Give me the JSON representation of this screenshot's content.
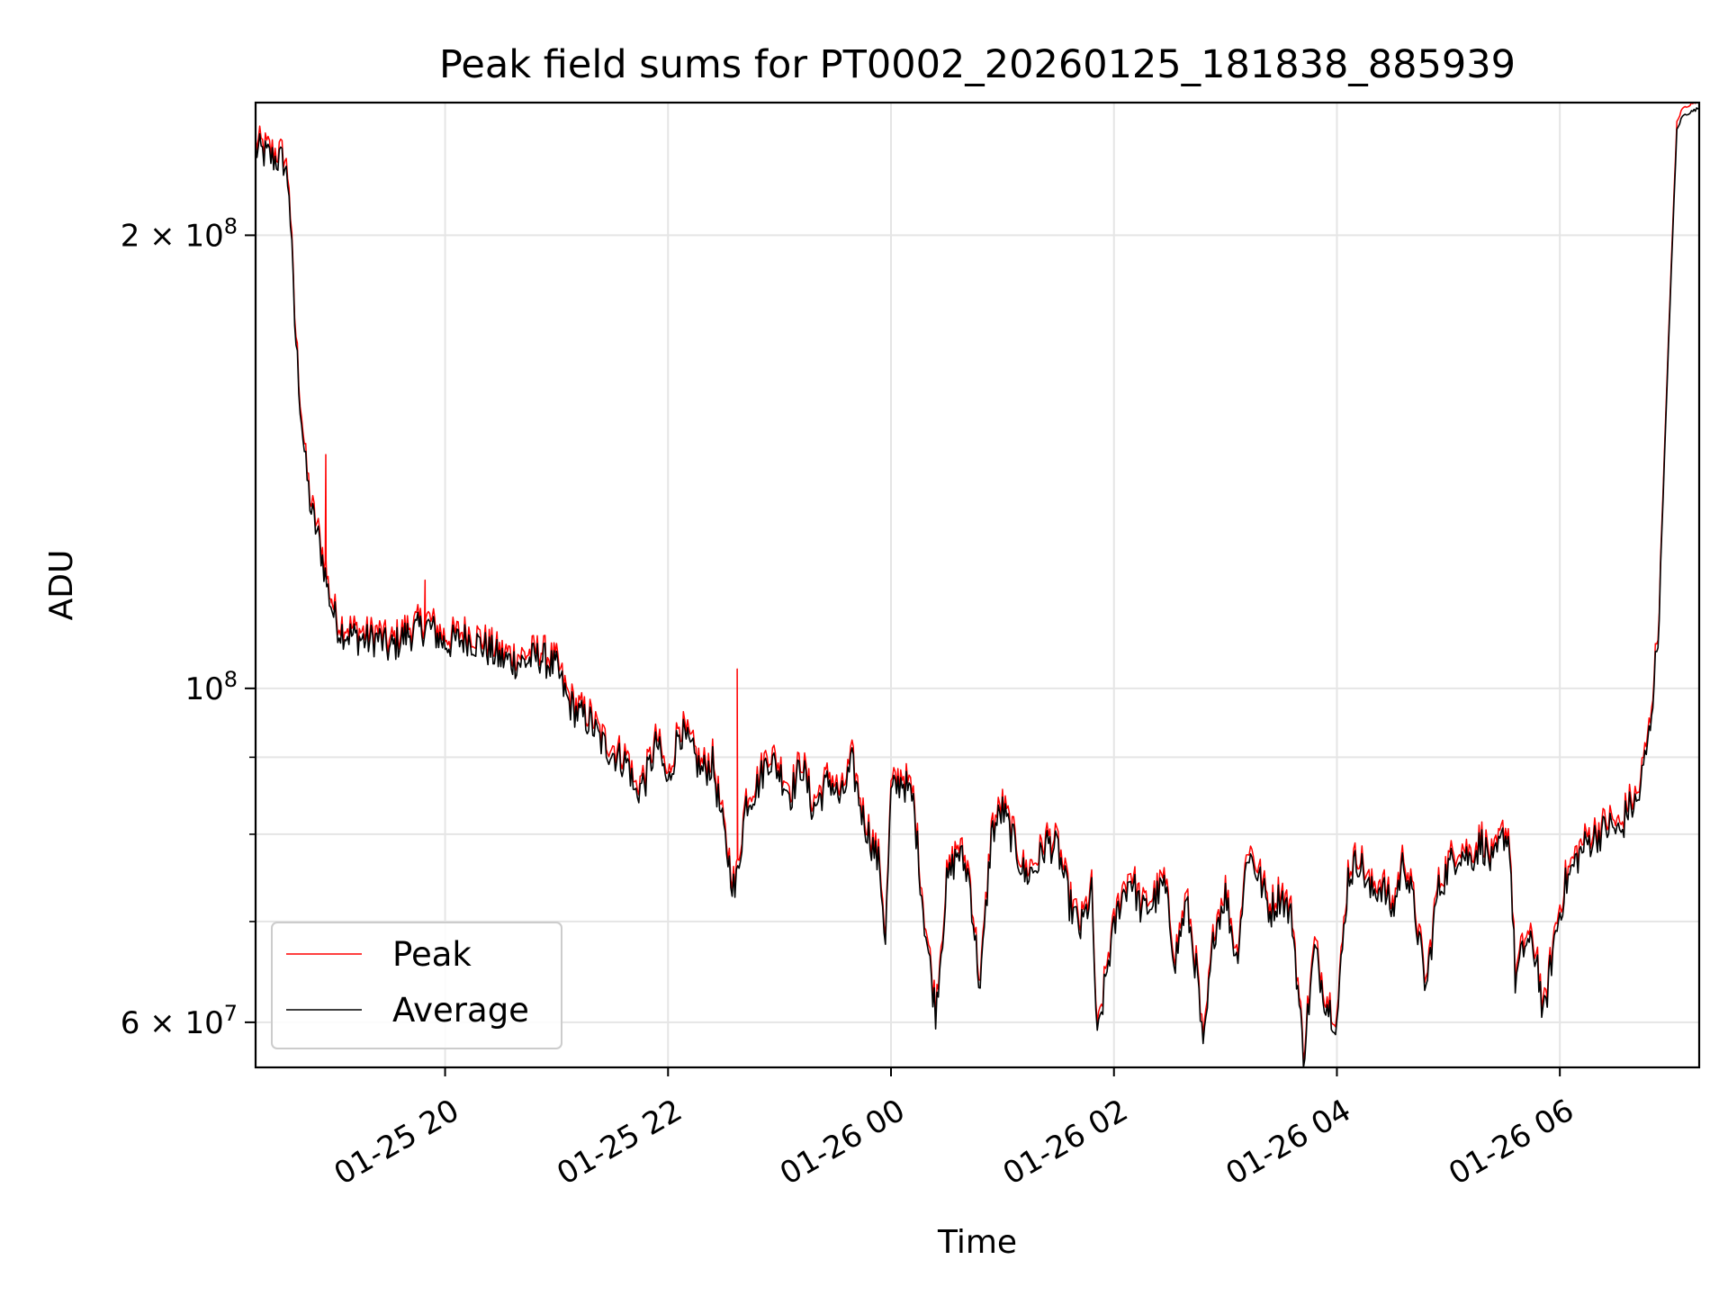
{
  "chart_data": {
    "type": "line",
    "title": "Peak field sums for PT0002_20260125_181838_885939",
    "xlabel": "Time",
    "ylabel": "ADU",
    "yscale": "log",
    "ylim": [
      56000000,
      245000000
    ],
    "xlim_hours": [
      -1.7,
      11.25
    ],
    "x_unit": "hours since 01-25 20:00",
    "grid": true,
    "legend": {
      "position": "lower-left",
      "entries": [
        "Peak",
        "Average"
      ]
    },
    "x_ticks": [
      {
        "label": "01-25 20",
        "value": 0
      },
      {
        "label": "01-25 22",
        "value": 2
      },
      {
        "label": "01-26 00",
        "value": 4
      },
      {
        "label": "01-26 02",
        "value": 6
      },
      {
        "label": "01-26 04",
        "value": 8
      },
      {
        "label": "01-26 06",
        "value": 10
      }
    ],
    "y_major_ticks": [
      {
        "value": 100000000,
        "mant": "",
        "base": "10",
        "exp": "8"
      },
      {
        "value": 200000000,
        "mant": "2 × ",
        "base": "10",
        "exp": "8"
      },
      {
        "value": 60000000,
        "mant": "6 × ",
        "base": "10",
        "exp": "7"
      }
    ],
    "y_minor_ticks": [
      70000000,
      80000000,
      90000000
    ],
    "colors": {
      "peak": "#ff0000",
      "average": "#000000",
      "grid": "#e5e5e5"
    },
    "series": [
      {
        "name": "Average",
        "points": [
          [
            -1.7,
            228000000
          ],
          [
            -1.55,
            225000000
          ],
          [
            -1.45,
            224000000
          ],
          [
            -1.4,
            215000000
          ],
          [
            -1.35,
            175000000
          ],
          [
            -1.3,
            155000000
          ],
          [
            -1.25,
            140000000
          ],
          [
            -1.2,
            131000000
          ],
          [
            -1.15,
            127000000
          ],
          [
            -1.1,
            122000000
          ],
          [
            -1.05,
            116000000
          ],
          [
            -1.0,
            112000000
          ],
          [
            -0.95,
            109500000
          ],
          [
            -0.85,
            108500000
          ],
          [
            -0.7,
            107500000
          ],
          [
            -0.6,
            108000000
          ],
          [
            -0.5,
            106000000
          ],
          [
            -0.35,
            108500000
          ],
          [
            -0.15,
            110000000
          ],
          [
            0.0,
            107000000
          ],
          [
            0.2,
            108000000
          ],
          [
            0.35,
            106500000
          ],
          [
            0.5,
            104500000
          ],
          [
            0.7,
            104000000
          ],
          [
            0.85,
            105000000
          ],
          [
            1.0,
            103000000
          ],
          [
            1.1,
            98000000
          ],
          [
            1.2,
            96000000
          ],
          [
            1.3,
            95000000
          ],
          [
            1.4,
            92000000
          ],
          [
            1.55,
            90000000
          ],
          [
            1.65,
            89000000
          ],
          [
            1.7,
            85000000
          ],
          [
            1.8,
            87000000
          ],
          [
            1.9,
            92000000
          ],
          [
            2.0,
            86000000
          ],
          [
            2.1,
            94000000
          ],
          [
            2.2,
            91000000
          ],
          [
            2.3,
            88000000
          ],
          [
            2.4,
            89000000
          ],
          [
            2.5,
            80000000
          ],
          [
            2.6,
            73000000
          ],
          [
            2.7,
            84000000
          ],
          [
            2.8,
            86000000
          ],
          [
            2.9,
            90000000
          ],
          [
            3.0,
            88000000
          ],
          [
            3.1,
            85000000
          ],
          [
            3.2,
            89000000
          ],
          [
            3.3,
            83000000
          ],
          [
            3.45,
            87000000
          ],
          [
            3.55,
            84000000
          ],
          [
            3.65,
            89000000
          ],
          [
            3.75,
            82000000
          ],
          [
            3.8,
            80000000
          ],
          [
            3.9,
            76000000
          ],
          [
            3.95,
            68000000
          ],
          [
            4.0,
            85000000
          ],
          [
            4.1,
            87000000
          ],
          [
            4.2,
            84000000
          ],
          [
            4.3,
            70000000
          ],
          [
            4.4,
            61000000
          ],
          [
            4.5,
            74000000
          ],
          [
            4.6,
            78000000
          ],
          [
            4.7,
            75000000
          ],
          [
            4.8,
            63000000
          ],
          [
            4.9,
            80000000
          ],
          [
            5.0,
            83000000
          ],
          [
            5.1,
            79000000
          ],
          [
            5.2,
            75000000
          ],
          [
            5.3,
            76000000
          ],
          [
            5.4,
            79000000
          ],
          [
            5.5,
            78000000
          ],
          [
            5.6,
            72000000
          ],
          [
            5.7,
            69000000
          ],
          [
            5.8,
            73000000
          ],
          [
            5.85,
            58000000
          ],
          [
            5.95,
            66000000
          ],
          [
            6.05,
            72000000
          ],
          [
            6.15,
            75000000
          ],
          [
            6.25,
            71000000
          ],
          [
            6.35,
            72000000
          ],
          [
            6.45,
            74000000
          ],
          [
            6.55,
            66000000
          ],
          [
            6.65,
            72000000
          ],
          [
            6.75,
            64000000
          ],
          [
            6.8,
            57000000
          ],
          [
            6.9,
            69000000
          ],
          [
            7.0,
            73000000
          ],
          [
            7.1,
            66000000
          ],
          [
            7.2,
            78000000
          ],
          [
            7.3,
            75000000
          ],
          [
            7.4,
            71000000
          ],
          [
            7.5,
            73000000
          ],
          [
            7.6,
            70000000
          ],
          [
            7.7,
            57000000
          ],
          [
            7.8,
            67000000
          ],
          [
            7.9,
            62000000
          ],
          [
            8.0,
            60000000
          ],
          [
            8.1,
            75000000
          ],
          [
            8.2,
            77000000
          ],
          [
            8.3,
            73000000
          ],
          [
            8.4,
            74000000
          ],
          [
            8.5,
            71000000
          ],
          [
            8.6,
            77000000
          ],
          [
            8.7,
            71000000
          ],
          [
            8.8,
            63000000
          ],
          [
            8.9,
            73000000
          ],
          [
            9.0,
            76000000
          ],
          [
            9.1,
            78000000
          ],
          [
            9.2,
            77000000
          ],
          [
            9.3,
            79000000
          ],
          [
            9.4,
            76000000
          ],
          [
            9.5,
            80000000
          ],
          [
            9.55,
            79000000
          ],
          [
            9.6,
            64000000
          ],
          [
            9.7,
            68000000
          ],
          [
            9.8,
            66000000
          ],
          [
            9.85,
            60000000
          ],
          [
            9.95,
            68000000
          ],
          [
            10.05,
            74000000
          ],
          [
            10.15,
            77000000
          ],
          [
            10.25,
            79000000
          ],
          [
            10.35,
            80000000
          ],
          [
            10.45,
            81000000
          ],
          [
            10.55,
            80000000
          ],
          [
            10.6,
            83000000
          ],
          [
            10.7,
            84000000
          ],
          [
            10.8,
            93000000
          ],
          [
            10.88,
            108000000
          ],
          [
            10.95,
            150000000
          ],
          [
            11.0,
            190000000
          ],
          [
            11.05,
            235000000
          ],
          [
            11.1,
            240000000
          ],
          [
            11.25,
            243000000
          ]
        ]
      },
      {
        "name": "Peak",
        "offset_ratio": 1.012,
        "spikes": [
          {
            "x": -1.07,
            "value": 143000000
          },
          {
            "x": -1.02,
            "value": 114000000
          },
          {
            "x": -0.18,
            "value": 118000000
          },
          {
            "x": 2.62,
            "value": 103000000
          }
        ]
      }
    ]
  }
}
